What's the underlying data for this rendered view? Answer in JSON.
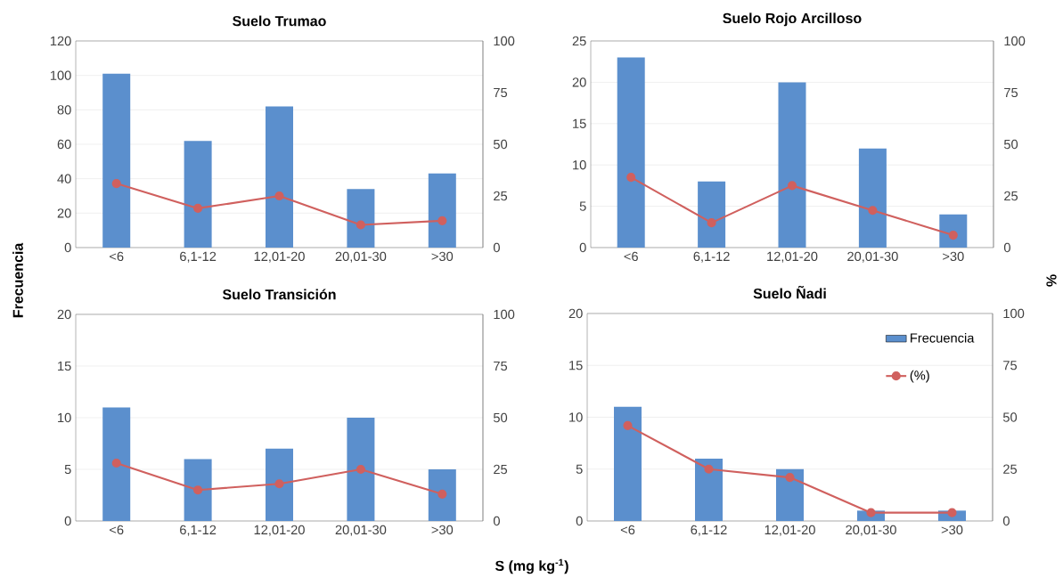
{
  "chart_data": [
    {
      "type": "bar",
      "title": "Suelo  Trumao",
      "ylabel": "Frecuencia",
      "categories": [
        "<6",
        "6,1-12",
        "12,01-20",
        "20,01-30",
        ">30"
      ],
      "series": [
        {
          "color": "#5b8fcd",
          "values": [
            101,
            62,
            82,
            34,
            43
          ]
        },
        {
          "type": "line",
          "axis": "y2",
          "color": "#d0605e",
          "values": [
            31,
            19,
            25,
            11,
            13
          ]
        }
      ],
      "ylim": [
        0,
        120
      ],
      "yticks": [
        0,
        20,
        40,
        60,
        80,
        100,
        120
      ],
      "y2lim": [
        0,
        100
      ],
      "y2ticks": [
        0,
        25,
        50,
        75,
        100
      ],
      "grid": "y",
      "marker": "circle"
    },
    {
      "type": "bar",
      "title": "Suelo  Rojo Arcilloso",
      "y2label": "%",
      "categories": [
        "<6",
        "6,1-12",
        "12,01-20",
        "20,01-30",
        ">30"
      ],
      "series": [
        {
          "color": "#5b8fcd",
          "values": [
            23,
            8,
            20,
            12,
            4
          ]
        },
        {
          "type": "line",
          "axis": "y2",
          "color": "#d0605e",
          "values": [
            34,
            12,
            30,
            18,
            6
          ]
        }
      ],
      "ylim": [
        0,
        25
      ],
      "yticks": [
        0,
        5,
        10,
        15,
        20,
        25
      ],
      "y2lim": [
        0,
        100
      ],
      "y2ticks": [
        0,
        25,
        50,
        75,
        100
      ],
      "grid": "y",
      "marker": "circle"
    },
    {
      "type": "bar",
      "title": "Suelo  Transición",
      "xlabel": "S (mg kg$^{-1}$)",
      "categories": [
        "<6",
        "6,1-12",
        "12,01-20",
        "20,01-30",
        ">30"
      ],
      "series": [
        {
          "color": "#5b8fcd",
          "values": [
            11,
            6,
            7,
            10,
            5
          ]
        },
        {
          "type": "line",
          "axis": "y2",
          "color": "#d0605e",
          "values": [
            28,
            15,
            18,
            25,
            13
          ]
        }
      ],
      "ylim": [
        0,
        20
      ],
      "yticks": [
        0,
        5,
        10,
        15,
        20
      ],
      "y2lim": [
        0,
        100
      ],
      "y2ticks": [
        0,
        25,
        50,
        75,
        100
      ],
      "grid": "y",
      "marker": "circle"
    },
    {
      "type": "bar",
      "title": "Suelo  Ñadi",
      "categories": [
        "<6",
        "6,1-12",
        "12,01-20",
        "20,01-30",
        ">30"
      ],
      "series": [
        {
          "name": "Frecuencia",
          "color": "#5b8fcd",
          "values": [
            11,
            6,
            5,
            1,
            1
          ]
        },
        {
          "type": "line",
          "name": "(%)",
          "axis": "y2",
          "color": "#d0605e",
          "values": [
            46,
            25,
            21,
            4,
            4
          ]
        }
      ],
      "ylim": [
        0,
        20
      ],
      "yticks": [
        0,
        5,
        10,
        15,
        20
      ],
      "y2lim": [
        0,
        100
      ],
      "y2ticks": [
        0,
        25,
        50,
        75,
        100
      ],
      "grid": "y",
      "marker": "circle",
      "legend": "top right"
    }
  ]
}
